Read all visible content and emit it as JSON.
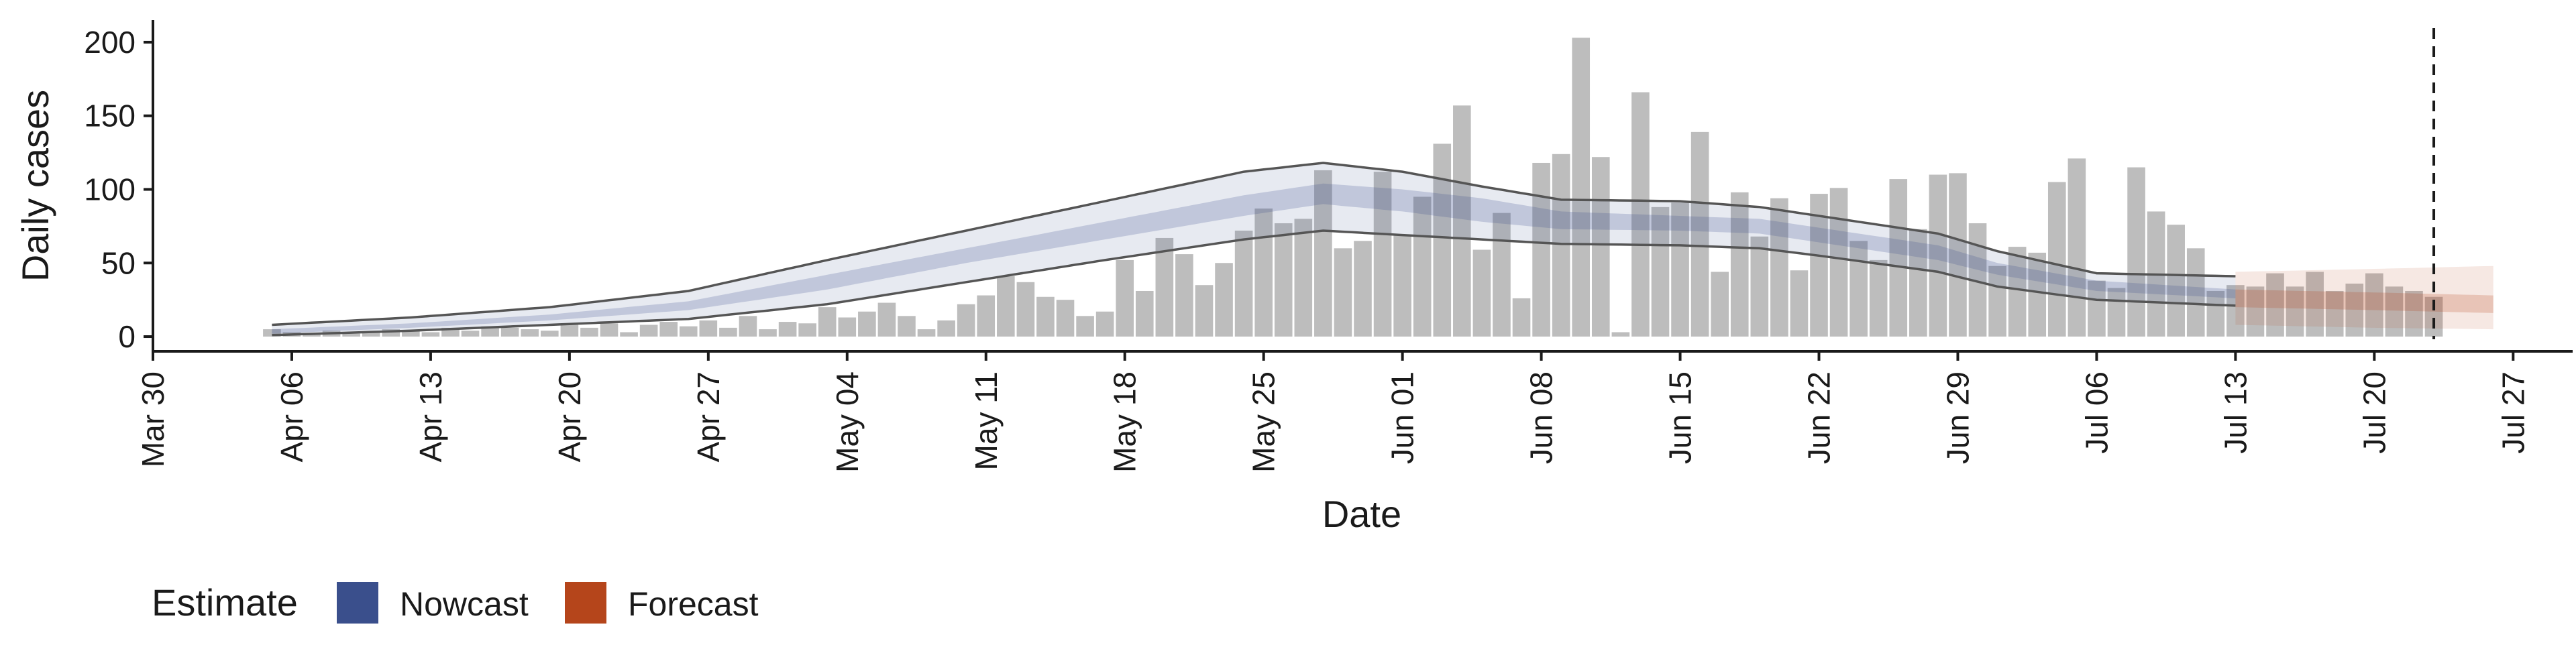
{
  "chart_data": {
    "type": "bar",
    "xlabel": "Date",
    "ylabel": "Daily cases",
    "xlim": [
      "2020-03-30",
      "2020-07-30"
    ],
    "ylim": [
      -10,
      215
    ],
    "x_ticks": [
      "2020-03-30",
      "2020-04-06",
      "2020-04-13",
      "2020-04-20",
      "2020-04-27",
      "2020-05-04",
      "2020-05-11",
      "2020-05-18",
      "2020-05-25",
      "2020-06-01",
      "2020-06-08",
      "2020-06-15",
      "2020-06-22",
      "2020-06-29",
      "2020-07-06",
      "2020-07-13",
      "2020-07-20",
      "2020-07-27"
    ],
    "x_tick_labels": [
      "Mar 30",
      "Apr 06",
      "Apr 13",
      "Apr 20",
      "Apr 27",
      "May 04",
      "May 11",
      "May 18",
      "May 25",
      "Jun 01",
      "Jun 08",
      "Jun 15",
      "Jun 22",
      "Jun 29",
      "Jul 06",
      "Jul 13",
      "Jul 20",
      "Jul 27"
    ],
    "y_ticks": [
      0,
      50,
      100,
      150,
      200
    ],
    "y_tick_labels": [
      "0",
      "50",
      "100",
      "150",
      "200"
    ],
    "bar_start": "2020-04-05",
    "bars": [
      5,
      3,
      2,
      4,
      2,
      3,
      5,
      4,
      3,
      6,
      4,
      7,
      6,
      5,
      4,
      8,
      6,
      9,
      3,
      8,
      10,
      7,
      11,
      6,
      14,
      5,
      10,
      9,
      20,
      13,
      17,
      23,
      14,
      5,
      11,
      22,
      28,
      41,
      37,
      27,
      25,
      14,
      17,
      52,
      31,
      67,
      56,
      35,
      50,
      72,
      87,
      77,
      80,
      113,
      60,
      65,
      112,
      69,
      95,
      131,
      157,
      59,
      84,
      26,
      118,
      124,
      203,
      122,
      3,
      166,
      88,
      91,
      139,
      44,
      98,
      68,
      94,
      45,
      97,
      101,
      65,
      52,
      107,
      73,
      110,
      111,
      77,
      48,
      61,
      57,
      105,
      121,
      38,
      33,
      115,
      85,
      76,
      60,
      31,
      35,
      34,
      43,
      34,
      44,
      31,
      36,
      43,
      34,
      31,
      27
    ],
    "nowcast": {
      "name": "Nowcast",
      "color": "#3a4f8c",
      "x_start": "2020-04-05",
      "x_end": "2020-07-13",
      "knots": [
        {
          "x": "2020-04-05",
          "lo90": 1,
          "lo50": 2,
          "hi50": 5,
          "hi90": 8
        },
        {
          "x": "2020-04-12",
          "lo90": 4,
          "lo50": 6,
          "hi50": 9,
          "hi90": 13
        },
        {
          "x": "2020-04-19",
          "lo90": 8,
          "lo50": 11,
          "hi50": 15,
          "hi90": 20
        },
        {
          "x": "2020-04-26",
          "lo90": 12,
          "lo50": 18,
          "hi50": 24,
          "hi90": 31
        },
        {
          "x": "2020-05-03",
          "lo90": 22,
          "lo50": 32,
          "hi50": 42,
          "hi90": 52
        },
        {
          "x": "2020-05-10",
          "lo90": 37,
          "lo50": 50,
          "hi50": 60,
          "hi90": 72
        },
        {
          "x": "2020-05-17",
          "lo90": 52,
          "lo50": 66,
          "hi50": 78,
          "hi90": 92
        },
        {
          "x": "2020-05-24",
          "lo90": 66,
          "lo50": 82,
          "hi50": 96,
          "hi90": 112
        },
        {
          "x": "2020-05-28",
          "lo90": 72,
          "lo50": 90,
          "hi50": 104,
          "hi90": 118
        },
        {
          "x": "2020-06-01",
          "lo90": 69,
          "lo50": 85,
          "hi50": 100,
          "hi90": 112
        },
        {
          "x": "2020-06-05",
          "lo90": 66,
          "lo50": 78,
          "hi50": 94,
          "hi90": 102
        },
        {
          "x": "2020-06-09",
          "lo90": 63,
          "lo50": 73,
          "hi50": 85,
          "hi90": 93
        },
        {
          "x": "2020-06-15",
          "lo90": 62,
          "lo50": 72,
          "hi50": 82,
          "hi90": 92
        },
        {
          "x": "2020-06-19",
          "lo90": 60,
          "lo50": 70,
          "hi50": 80,
          "hi90": 88
        },
        {
          "x": "2020-06-22",
          "lo90": 55,
          "lo50": 64,
          "hi50": 74,
          "hi90": 82
        },
        {
          "x": "2020-06-28",
          "lo90": 44,
          "lo50": 52,
          "hi50": 62,
          "hi90": 70
        },
        {
          "x": "2020-07-01",
          "lo90": 34,
          "lo50": 42,
          "hi50": 50,
          "hi90": 58
        },
        {
          "x": "2020-07-06",
          "lo90": 25,
          "lo50": 31,
          "hi50": 38,
          "hi90": 43
        },
        {
          "x": "2020-07-13",
          "lo90": 21,
          "lo50": 26,
          "hi50": 32,
          "hi90": 41
        }
      ]
    },
    "forecast": {
      "name": "Forecast",
      "color": "#b5451b",
      "x_start": "2020-07-13",
      "x_end": "2020-07-26",
      "knots": [
        {
          "x": "2020-07-13",
          "lo90": 8,
          "lo50": 20,
          "hi50": 32,
          "hi90": 44
        },
        {
          "x": "2020-07-20",
          "lo90": 6,
          "lo50": 18,
          "hi50": 30,
          "hi90": 46
        },
        {
          "x": "2020-07-26",
          "lo90": 5,
          "lo50": 16,
          "hi50": 28,
          "hi90": 48
        }
      ]
    },
    "reference_line": {
      "x": "2020-07-23",
      "style": "dashed"
    },
    "legend": {
      "title": "Estimate",
      "position": "bottom-left",
      "entries": [
        {
          "label": "Nowcast",
          "color": "#3a4f8c"
        },
        {
          "label": "Forecast",
          "color": "#b5451b"
        }
      ]
    },
    "bar_color": "#bdbdbd",
    "grid": false
  }
}
